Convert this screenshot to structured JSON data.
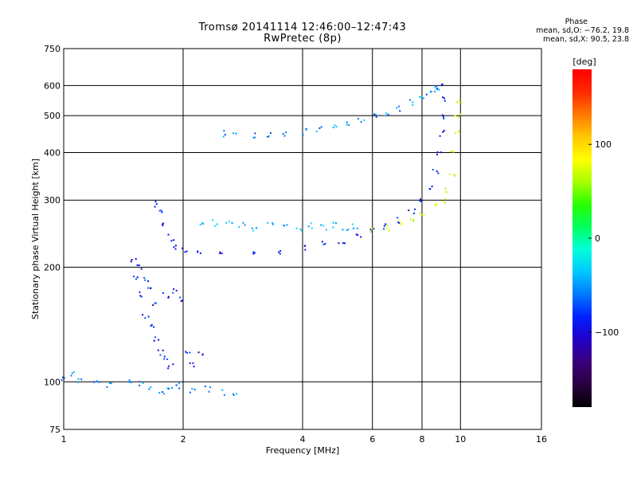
{
  "header": {
    "title_line1": "Tromsø 20141114 12:46:00–12:47:43",
    "title_line2": "RwPretec (8p)"
  },
  "phase_info": {
    "title": "Phase",
    "line_o": "mean, sd,O: −76.2, 19.8",
    "line_x": "mean, sd,X:  90.5, 23.8"
  },
  "colorbar": {
    "label": "[deg]",
    "ticks": [
      {
        "value": 100,
        "label": "100"
      },
      {
        "value": 0,
        "label": "0"
      },
      {
        "value": -100,
        "label": "−100"
      }
    ],
    "range": [
      -180,
      180
    ],
    "colors": [
      "#000000",
      "#2a0040",
      "#3c007a",
      "#2200c8",
      "#0020ff",
      "#0078ff",
      "#00c8ff",
      "#00ffd8",
      "#00ff60",
      "#28ff00",
      "#a8ff00",
      "#ffff00",
      "#ffc800",
      "#ff7800",
      "#ff2800",
      "#ff0000"
    ]
  },
  "chart_data": {
    "type": "scatter",
    "title": "Tromsø 20141114 12:46:00–12:47:43",
    "subtitle": "RwPretec (8p)",
    "xlabel": "Frequency [MHz]",
    "ylabel": "Stationary phase Virtual Height [km]",
    "x_scale": "log",
    "y_scale": "log",
    "xlim": [
      1,
      16
    ],
    "ylim": [
      75,
      750
    ],
    "xticks": [
      1,
      2,
      4,
      6,
      8,
      10,
      16
    ],
    "yticks": [
      75,
      100,
      200,
      300,
      400,
      500,
      600,
      750
    ],
    "grid": true,
    "series": [
      {
        "name": "",
        "trace": "e-layer",
        "color_hint": "blue-cyan",
        "points": [
          [
            1.0,
            103
          ],
          [
            1.05,
            105
          ],
          [
            1.1,
            102
          ],
          [
            1.2,
            100
          ],
          [
            1.3,
            99
          ],
          [
            1.45,
            100
          ],
          [
            1.55,
            99
          ],
          [
            1.65,
            97
          ],
          [
            1.75,
            95
          ],
          [
            1.85,
            96
          ],
          [
            1.95,
            98
          ],
          [
            2.1,
            95
          ],
          [
            2.3,
            96
          ],
          [
            2.5,
            94
          ],
          [
            2.7,
            92
          ]
        ]
      },
      {
        "name": "",
        "trace": "f1-band",
        "color_hint": "blue",
        "points": [
          [
            1.5,
            210
          ],
          [
            1.55,
            200
          ],
          [
            1.6,
            185
          ],
          [
            1.65,
            180
          ],
          [
            1.5,
            190
          ],
          [
            1.55,
            170
          ],
          [
            1.6,
            150
          ],
          [
            1.65,
            140
          ],
          [
            1.7,
            130
          ],
          [
            1.75,
            120
          ],
          [
            1.8,
            115
          ],
          [
            1.85,
            110
          ],
          [
            1.7,
            160
          ],
          [
            1.8,
            170
          ],
          [
            1.9,
            175
          ],
          [
            1.95,
            165
          ],
          [
            2.05,
            120
          ],
          [
            2.1,
            112
          ],
          [
            2.2,
            118
          ]
        ]
      },
      {
        "name": "",
        "trace": "f-o-trace",
        "color_hint": "blue",
        "points": [
          [
            1.7,
            295
          ],
          [
            1.75,
            280
          ],
          [
            1.8,
            260
          ],
          [
            1.85,
            240
          ],
          [
            1.9,
            228
          ],
          [
            2.0,
            222
          ],
          [
            2.2,
            219
          ],
          [
            2.5,
            217
          ],
          [
            3.0,
            218
          ],
          [
            3.5,
            221
          ],
          [
            4.0,
            225
          ],
          [
            4.5,
            230
          ],
          [
            5.0,
            235
          ],
          [
            5.5,
            243
          ],
          [
            6.0,
            252
          ],
          [
            6.5,
            258
          ],
          [
            7.0,
            266
          ],
          [
            7.5,
            280
          ],
          [
            8.0,
            300
          ],
          [
            8.3,
            325
          ],
          [
            8.6,
            360
          ],
          [
            8.8,
            400
          ],
          [
            8.9,
            450
          ],
          [
            8.95,
            500
          ],
          [
            9.0,
            560
          ],
          [
            9.05,
            600
          ]
        ]
      },
      {
        "name": "",
        "trace": "f-x-trace",
        "color_hint": "yellow-green",
        "points": [
          [
            6.0,
            250
          ],
          [
            6.5,
            255
          ],
          [
            7.0,
            262
          ],
          [
            7.5,
            270
          ],
          [
            8.0,
            280
          ],
          [
            8.5,
            290
          ],
          [
            9.0,
            300
          ],
          [
            9.3,
            320
          ],
          [
            9.5,
            350
          ],
          [
            9.6,
            400
          ],
          [
            9.7,
            450
          ],
          [
            9.8,
            500
          ],
          [
            9.9,
            550
          ]
        ]
      },
      {
        "name": "",
        "trace": "f-high-o",
        "color_hint": "cyan-blue",
        "points": [
          [
            2.5,
            450
          ],
          [
            2.7,
            448
          ],
          [
            3.0,
            445
          ],
          [
            3.3,
            447
          ],
          [
            3.6,
            450
          ],
          [
            4.0,
            455
          ],
          [
            4.4,
            462
          ],
          [
            4.8,
            470
          ],
          [
            5.2,
            478
          ],
          [
            5.6,
            488
          ],
          [
            6.0,
            498
          ],
          [
            6.5,
            510
          ],
          [
            7.0,
            525
          ],
          [
            7.5,
            545
          ],
          [
            8.0,
            565
          ],
          [
            8.3,
            580
          ],
          [
            8.6,
            590
          ],
          [
            8.8,
            595
          ]
        ]
      },
      {
        "name": "",
        "trace": "f-upper-scatter",
        "color_hint": "cyan",
        "points": [
          [
            2.2,
            265
          ],
          [
            2.4,
            262
          ],
          [
            2.6,
            260
          ],
          [
            2.8,
            258
          ],
          [
            3.0,
            255
          ],
          [
            3.3,
            258
          ],
          [
            3.6,
            262
          ],
          [
            3.9,
            255
          ],
          [
            4.2,
            258
          ],
          [
            4.5,
            255
          ],
          [
            4.8,
            260
          ],
          [
            5.1,
            252
          ],
          [
            5.4,
            258
          ]
        ]
      }
    ],
    "colorbar_label": "[deg]",
    "colorbar_ticks": [
      100,
      0,
      -100
    ]
  }
}
